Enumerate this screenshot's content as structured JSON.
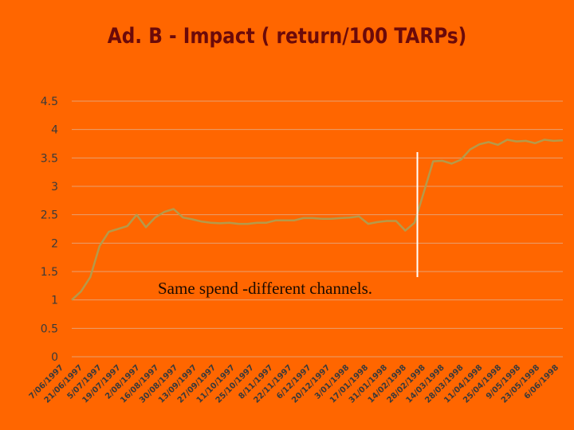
{
  "slide": {
    "title": "Ad. B - Impact ( return/100 TARPs)",
    "annotation": "Same spend -different channels."
  },
  "colors": {
    "background": "#FF6600",
    "title": "#6B0A0A",
    "line": "#B59A4A",
    "gridline": "#E8A070",
    "marker_line": "#FFFFFF"
  },
  "chart_data": {
    "type": "line",
    "title": "Ad. B - Impact ( return/100 TARPs)",
    "xlabel": "",
    "ylabel": "",
    "ylim": [
      0,
      4.5
    ],
    "yticks": [
      "4.5",
      "4",
      "3.5",
      "3",
      "2.5",
      "2",
      "1.5",
      "1",
      "0.5",
      "0"
    ],
    "grid": true,
    "legend": "none",
    "x_tick_labels": [
      "7/06/1997",
      "21/06/1997",
      "5/07/1997",
      "19/07/1997",
      "2/08/1997",
      "16/08/1997",
      "30/08/1997",
      "13/09/1997",
      "27/09/1997",
      "11/10/1997",
      "25/10/1997",
      "8/11/1997",
      "22/11/1997",
      "6/12/1997",
      "20/12/1997",
      "3/01/1998",
      "17/01/1998",
      "31/01/1998",
      "14/02/1998",
      "28/02/1998",
      "14/03/1998",
      "28/03/1998",
      "11/04/1998",
      "25/04/1998",
      "9/05/1998",
      "23/05/1998",
      "6/06/1998"
    ],
    "values": [
      1.0,
      1.15,
      1.4,
      1.95,
      2.2,
      2.25,
      2.3,
      2.5,
      2.28,
      2.45,
      2.55,
      2.6,
      2.45,
      2.42,
      2.38,
      2.36,
      2.35,
      2.36,
      2.34,
      2.34,
      2.36,
      2.36,
      2.4,
      2.4,
      2.4,
      2.44,
      2.44,
      2.43,
      2.43,
      2.44,
      2.45,
      2.47,
      2.34,
      2.37,
      2.39,
      2.39,
      2.22,
      2.36,
      2.9,
      3.44,
      3.45,
      3.4,
      3.47,
      3.65,
      3.74,
      3.78,
      3.73,
      3.82,
      3.79,
      3.8,
      3.76,
      3.82,
      3.8,
      3.81
    ],
    "marker_index": 37.3
  }
}
